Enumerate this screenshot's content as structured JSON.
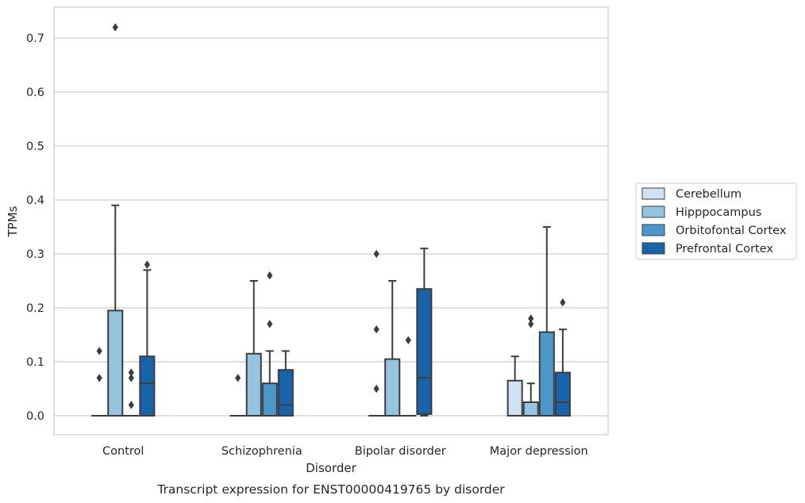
{
  "chart_data": {
    "type": "boxplot",
    "title": "Transcript expression for ENST00000419765 by disorder",
    "xlabel": "Disorder",
    "ylabel": "TPMs",
    "ylim": [
      -0.035,
      0.755
    ],
    "yticks": [
      "0.0",
      "0.1",
      "0.2",
      "0.3",
      "0.4",
      "0.5",
      "0.6",
      "0.7"
    ],
    "ytick_values": [
      0.0,
      0.1,
      0.2,
      0.3,
      0.4,
      0.5,
      0.6,
      0.7
    ],
    "categories": [
      "Control",
      "Schizophrenia",
      "Bipolar disorder",
      "Major depression"
    ],
    "grid": "horizontal",
    "legend_position": "right",
    "series": [
      {
        "name": "Cerebellum",
        "color": "#d0e1f2",
        "boxes": [
          {
            "q1": 0.0,
            "median": 0.0,
            "q3": 0.0,
            "whisker_low": 0.0,
            "whisker_high": 0.0,
            "outliers": [
              0.07,
              0.12
            ]
          },
          {
            "q1": 0.0,
            "median": 0.0,
            "q3": 0.0,
            "whisker_low": 0.0,
            "whisker_high": 0.0,
            "outliers": [
              0.07
            ]
          },
          {
            "q1": 0.0,
            "median": 0.0,
            "q3": 0.0,
            "whisker_low": 0.0,
            "whisker_high": 0.0,
            "outliers": [
              0.05,
              0.16,
              0.3
            ]
          },
          {
            "q1": 0.0,
            "median": 0.0,
            "q3": 0.065,
            "whisker_low": 0.0,
            "whisker_high": 0.11,
            "outliers": []
          }
        ]
      },
      {
        "name": "Hipppocampus",
        "color": "#94c4df",
        "boxes": [
          {
            "q1": 0.0,
            "median": 0.0,
            "q3": 0.195,
            "whisker_low": 0.0,
            "whisker_high": 0.39,
            "outliers": [
              0.72
            ]
          },
          {
            "q1": 0.0,
            "median": 0.0,
            "q3": 0.115,
            "whisker_low": 0.0,
            "whisker_high": 0.25,
            "outliers": []
          },
          {
            "q1": 0.0,
            "median": 0.0,
            "q3": 0.105,
            "whisker_low": 0.0,
            "whisker_high": 0.25,
            "outliers": []
          },
          {
            "q1": 0.0,
            "median": 0.0,
            "q3": 0.025,
            "whisker_low": 0.0,
            "whisker_high": 0.06,
            "outliers": [
              0.17,
              0.18
            ]
          }
        ]
      },
      {
        "name": "Orbitofontal Cortex",
        "color": "#4a98c9",
        "boxes": [
          {
            "q1": 0.0,
            "median": 0.0,
            "q3": 0.0,
            "whisker_low": 0.0,
            "whisker_high": 0.0,
            "outliers": [
              0.02,
              0.07,
              0.08
            ]
          },
          {
            "q1": 0.0,
            "median": 0.0,
            "q3": 0.06,
            "whisker_low": 0.0,
            "whisker_high": 0.12,
            "outliers": [
              0.17,
              0.26
            ]
          },
          {
            "q1": 0.0,
            "median": 0.0,
            "q3": 0.0,
            "whisker_low": 0.0,
            "whisker_high": 0.0,
            "outliers": [
              0.14
            ]
          },
          {
            "q1": 0.0,
            "median": 0.0,
            "q3": 0.155,
            "whisker_low": 0.0,
            "whisker_high": 0.35,
            "outliers": []
          }
        ]
      },
      {
        "name": "Prefrontal Cortex",
        "color": "#1764ab",
        "boxes": [
          {
            "q1": 0.0,
            "median": 0.06,
            "q3": 0.11,
            "whisker_low": 0.0,
            "whisker_high": 0.27,
            "outliers": [
              0.28
            ]
          },
          {
            "q1": 0.0,
            "median": 0.02,
            "q3": 0.085,
            "whisker_low": 0.0,
            "whisker_high": 0.12,
            "outliers": []
          },
          {
            "q1": 0.003,
            "median": 0.07,
            "q3": 0.235,
            "whisker_low": 0.0,
            "whisker_high": 0.31,
            "outliers": []
          },
          {
            "q1": 0.0,
            "median": 0.025,
            "q3": 0.08,
            "whisker_low": 0.0,
            "whisker_high": 0.16,
            "outliers": [
              0.21
            ]
          }
        ]
      }
    ]
  }
}
